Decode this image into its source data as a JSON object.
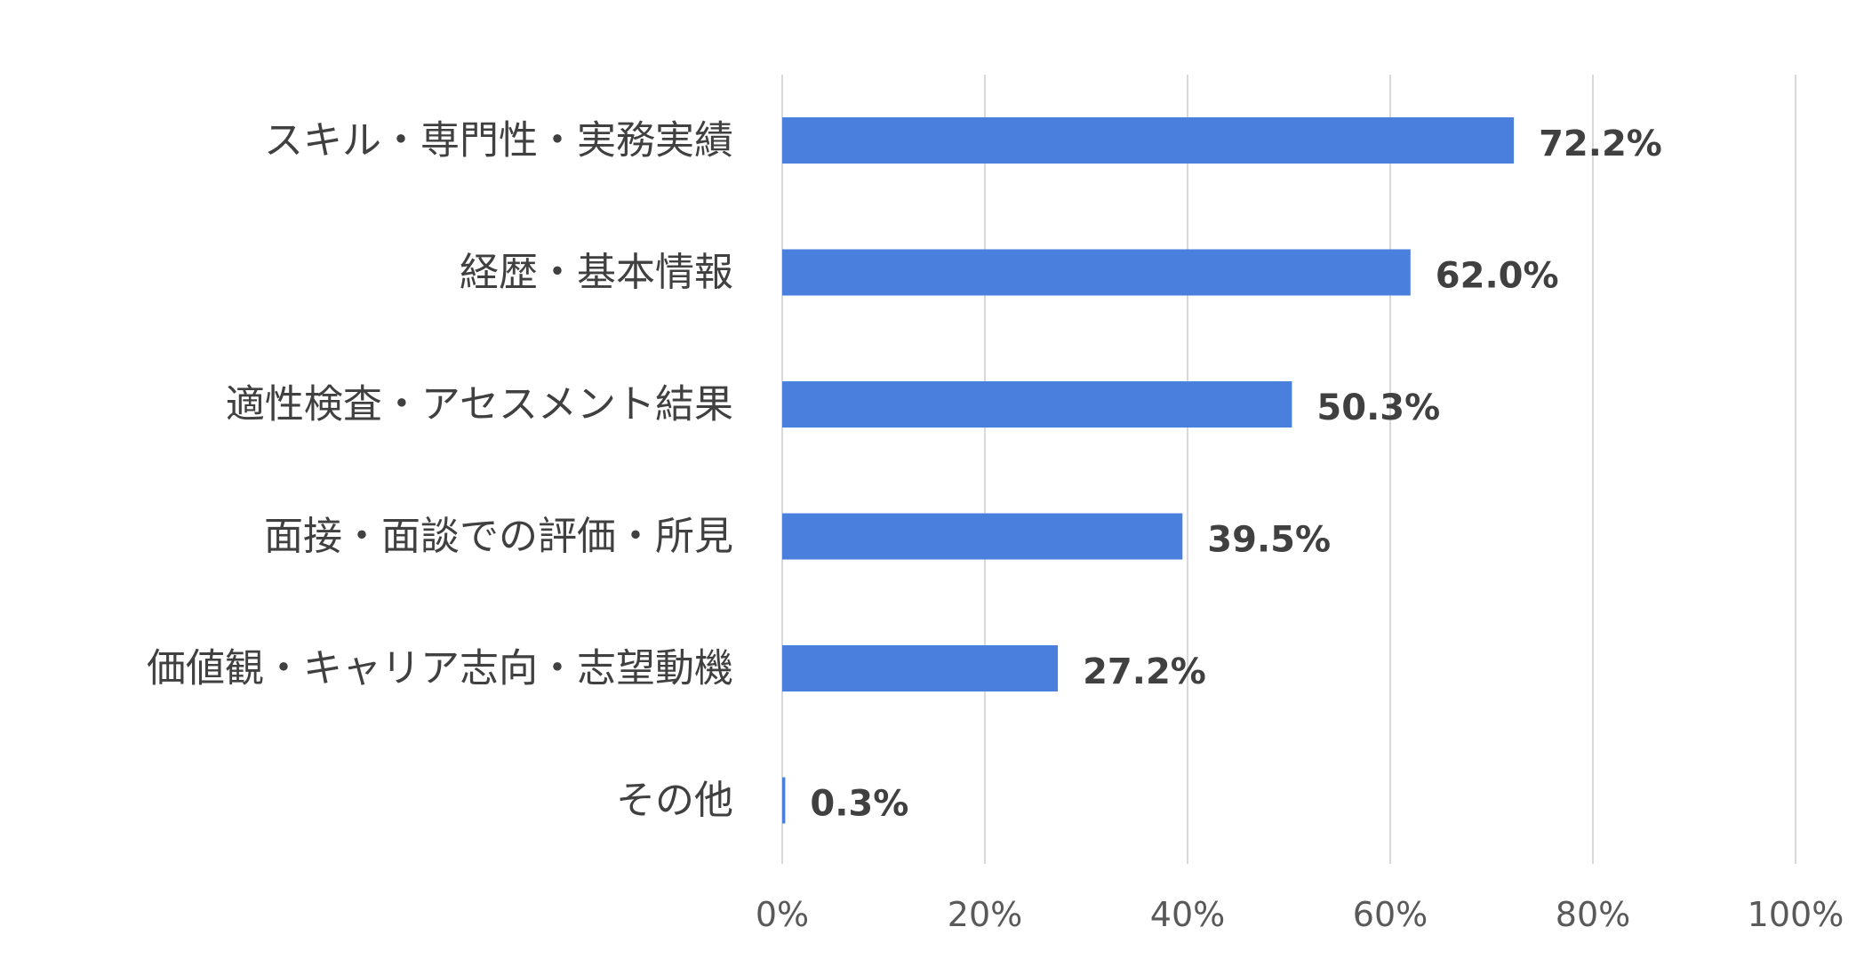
{
  "chart_data": {
    "type": "bar",
    "orientation": "horizontal",
    "categories": [
      "スキル・専門性・実務実績",
      "経歴・基本情報",
      "適性検査・アセスメント結果",
      "面接・面談での評価・所見",
      "価値観・キャリア志向・志望動機",
      "その他"
    ],
    "values": [
      72.2,
      62.0,
      50.3,
      39.5,
      27.2,
      0.3
    ],
    "value_labels": [
      "72.2%",
      "62.0%",
      "50.3%",
      "39.5%",
      "27.2%",
      "0.3%"
    ],
    "xlim": [
      0,
      100
    ],
    "xticks": [
      0,
      20,
      40,
      60,
      80,
      100
    ],
    "xtick_labels": [
      "0%",
      "20%",
      "40%",
      "60%",
      "80%",
      "100%"
    ],
    "title": "",
    "xlabel": "",
    "ylabel": "",
    "grid": "vertical",
    "legend": "none",
    "bar_color": "#4a7fde"
  }
}
